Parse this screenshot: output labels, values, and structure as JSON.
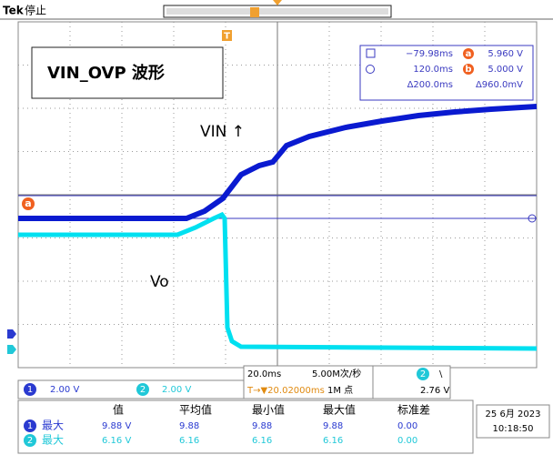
{
  "status": {
    "brand": "Tek",
    "state": "停止"
  },
  "trigger_marker": "T",
  "label": "VIN_OVP 波形",
  "cursors": {
    "markers": [
      "a",
      "b"
    ],
    "rows": [
      [
        "−79.98ms",
        "5.960 V"
      ],
      [
        "120.0ms",
        "5.000 V"
      ],
      [
        "Δ200.0ms",
        "Δ960.0mV"
      ]
    ]
  },
  "annotations": [
    "VIN ↑",
    "Vo"
  ],
  "channels": [
    {
      "id": "1",
      "scale": "2.00 V"
    },
    {
      "id": "2",
      "scale": "2.00 V"
    }
  ],
  "timebase": {
    "scale": "20.0ms",
    "rate": "5.00M次/秒",
    "trigger_pos": "T→▼20.02000ms",
    "record": "1M 点",
    "trigger_ch": "2",
    "trigger_slope": "\\",
    "trigger_level": "2.76 V"
  },
  "measurements": {
    "headers": [
      "值",
      "平均值",
      "最小值",
      "最大值",
      "标准差"
    ],
    "rows": [
      {
        "ch": "1",
        "name": "最大",
        "values": [
          "9.88 V",
          "9.88",
          "9.88",
          "9.88",
          "0.00"
        ]
      },
      {
        "ch": "2",
        "name": "最大",
        "values": [
          "6.16 V",
          "6.16",
          "6.16",
          "6.16",
          "0.00"
        ]
      }
    ]
  },
  "datetime": {
    "date": "25 6月 2023",
    "time": "10:18:50"
  }
}
